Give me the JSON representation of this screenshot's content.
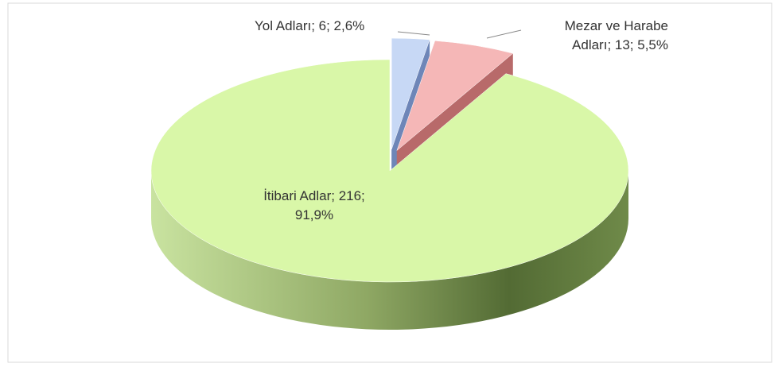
{
  "chart_data": {
    "type": "pie",
    "values": [
      216,
      6,
      13
    ],
    "value_labels": [
      "İtibari Adlar; 216;\n91,9%",
      "Yol Adları; 6; 2,6%",
      "Mezar ve Harabe\nAdları; 13; 5,5%"
    ],
    "colors": [
      "#d9f7a8",
      "#c7d8f5",
      "#f5b7b7"
    ],
    "side_colors": [
      "#5f7a3c",
      "#6e86b8",
      "#b86a6a"
    ]
  }
}
